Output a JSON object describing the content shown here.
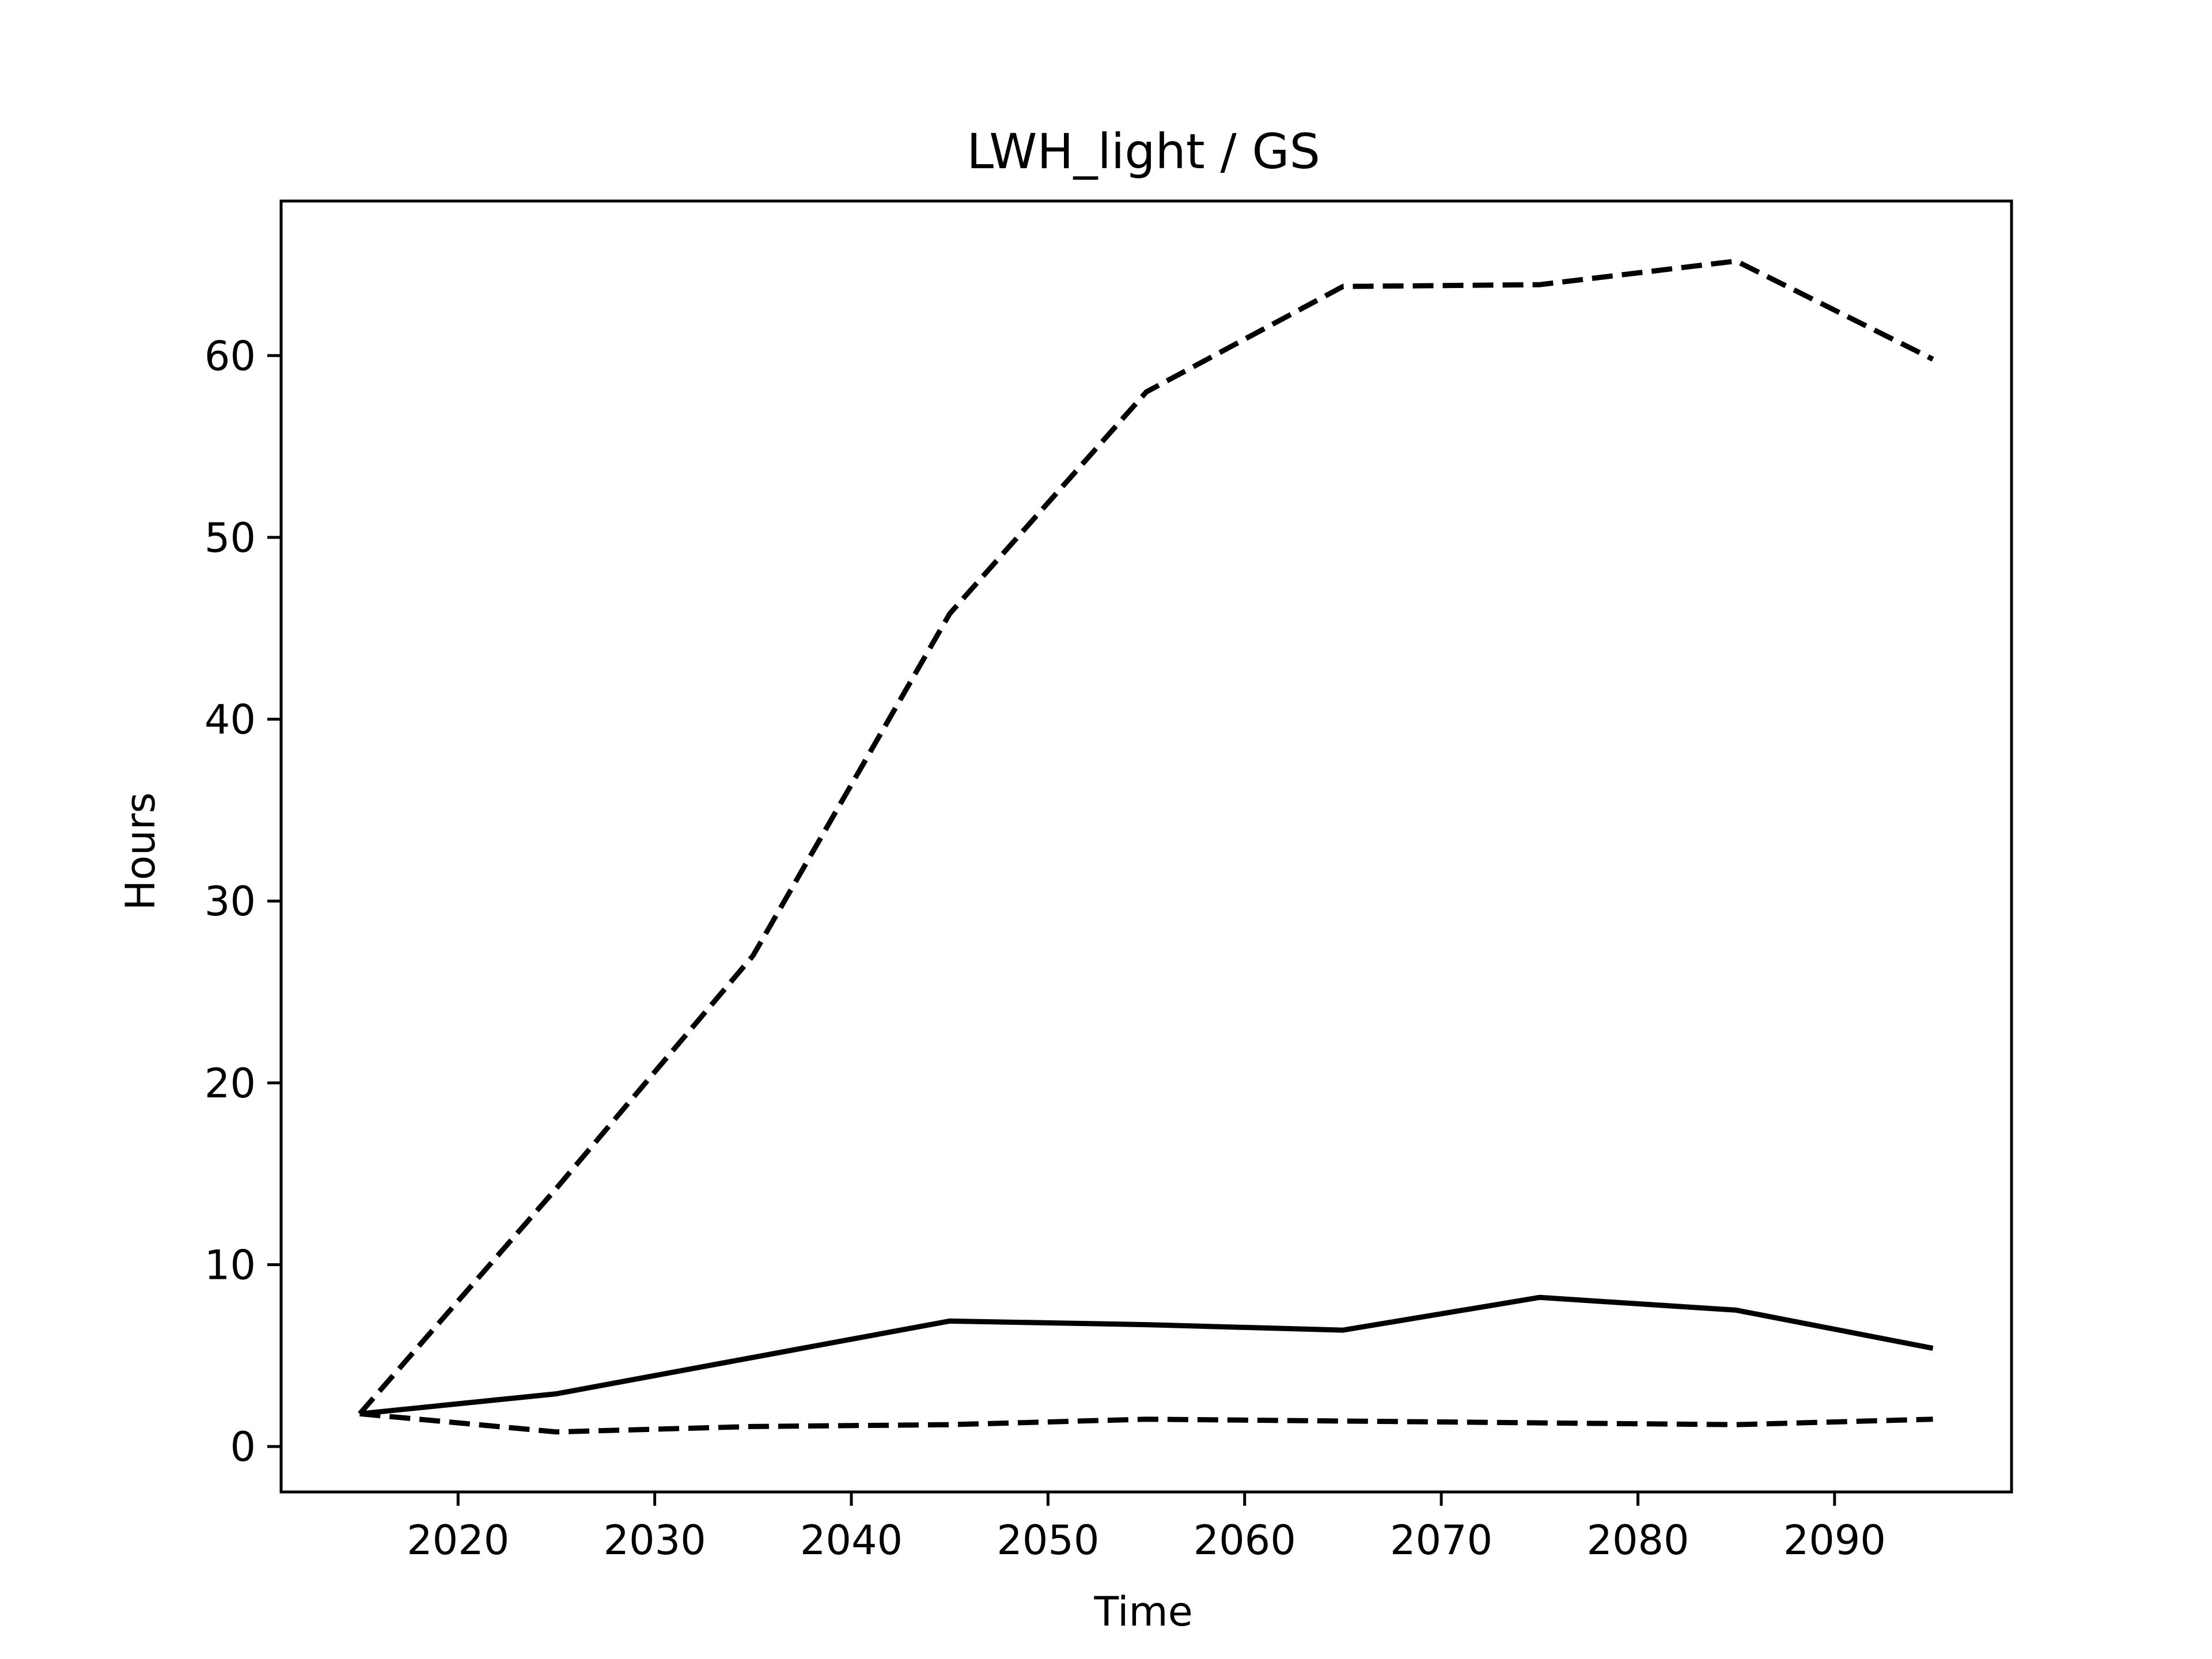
{
  "chart_data": {
    "type": "line",
    "title": "LWH_light / GS",
    "xlabel": "Time",
    "ylabel": "Hours",
    "x": [
      2015,
      2025,
      2035,
      2045,
      2055,
      2065,
      2075,
      2085,
      2095
    ],
    "xlim": [
      2011,
      2099
    ],
    "ylim": [
      -2.5,
      68.5
    ],
    "x_ticks": [
      2020,
      2030,
      2040,
      2050,
      2060,
      2070,
      2080,
      2090
    ],
    "y_ticks": [
      0,
      10,
      20,
      30,
      40,
      50,
      60
    ],
    "grid": false,
    "series": [
      {
        "style": "dashed",
        "color": "#000000",
        "values": [
          1.8,
          14.2,
          27.0,
          45.8,
          58.0,
          63.8,
          63.9,
          65.2,
          59.8
        ]
      },
      {
        "style": "solid",
        "color": "#000000",
        "values": [
          1.8,
          2.9,
          4.9,
          6.9,
          6.7,
          6.4,
          8.2,
          7.5,
          5.4
        ]
      },
      {
        "style": "dashed",
        "color": "#000000",
        "values": [
          1.8,
          0.8,
          1.1,
          1.2,
          1.5,
          1.4,
          1.3,
          1.2,
          1.5
        ]
      }
    ]
  }
}
